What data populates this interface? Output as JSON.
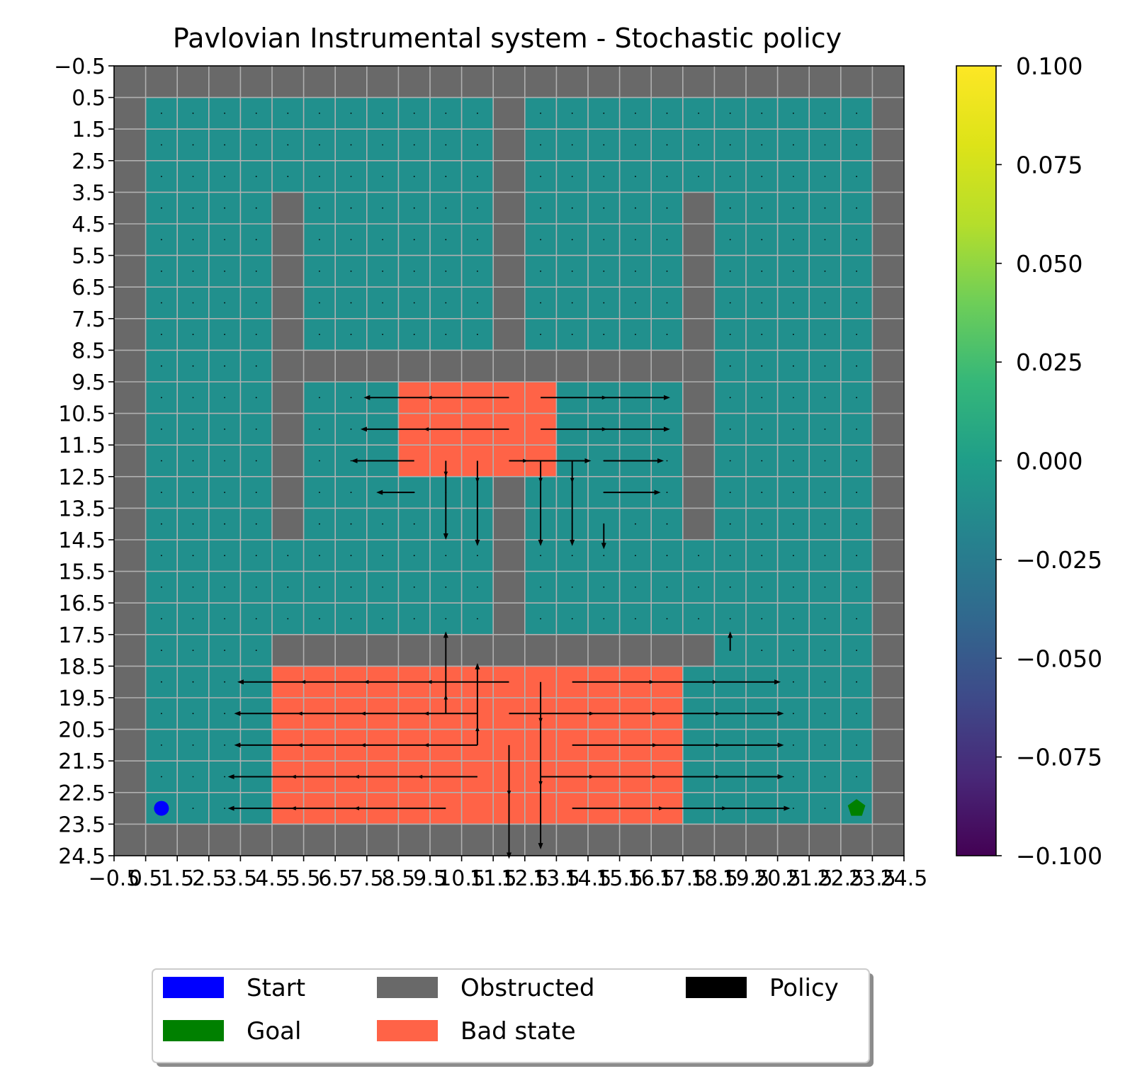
{
  "chart_data": {
    "type": "heatmap",
    "title": "Pavlovian Instrumental system - Stochastic policy",
    "xlabel": "",
    "ylabel": "",
    "xlim": [
      -0.5,
      24.5
    ],
    "ylim": [
      24.5,
      -0.5
    ],
    "grid": true,
    "xtick_labels": [
      "−0.5",
      "0.5",
      "1.5",
      "2.5",
      "3.5",
      "4.5",
      "5.5",
      "6.5",
      "7.5",
      "8.5",
      "9.5",
      "10.5",
      "11.5",
      "12.5",
      "13.5",
      "14.5",
      "15.5",
      "16.5",
      "17.5",
      "18.5",
      "19.5",
      "20.5",
      "21.5",
      "22.5",
      "23.5",
      "24.5"
    ],
    "ytick_labels": [
      "−0.5",
      "0.5",
      "1.5",
      "2.5",
      "3.5",
      "4.5",
      "5.5",
      "6.5",
      "7.5",
      "8.5",
      "9.5",
      "10.5",
      "11.5",
      "12.5",
      "13.5",
      "14.5",
      "15.5",
      "16.5",
      "17.5",
      "18.5",
      "19.5",
      "20.5",
      "21.5",
      "22.5",
      "23.5",
      "24.5"
    ],
    "grid_map": [
      "#########################",
      "#...........#...........#",
      "#...........#...........#",
      "#...........#...........#",
      "#....#......#.....#.....#",
      "#....#......#.....#.....#",
      "#....#......#.....#.....#",
      "#....#......#.....#.....#",
      "#....#......#.....#.....#",
      "#....##############.....#",
      "#....#...BBBBB....#.....#",
      "#....#...BBBBB....#.....#",
      "#....#...BBBBB....#.....#",
      "#....#......#.....#.....#",
      "#....#......#.....#.....#",
      "#...........#...........#",
      "#...........#...........#",
      "#...........#...........#",
      "#....##############.....#",
      "#....BBBBBBBBBBBBB......#",
      "#....BBBBBBBBBBBBB......#",
      "#....BBBBBBBBBBBBB......#",
      "#....BBBBBBBBBBBBB......#",
      "#....BBBBBBBBBBBBB......#",
      "#########################"
    ],
    "cell_colors": {
      "free": "#21908d",
      "obstructed": "#696969",
      "bad_state": "#ff6347",
      "grid_line": "#b0b0b0"
    },
    "start": {
      "x": 1,
      "y": 23
    },
    "goal": {
      "x": 23,
      "y": 23
    },
    "policy_arrows": [
      {
        "x": 12,
        "y": 10,
        "dx": -4.6,
        "dy": 0
      },
      {
        "x": 13,
        "y": 10,
        "dx": 4.1,
        "dy": 0
      },
      {
        "x": 12,
        "y": 11,
        "dx": -4.7,
        "dy": 0
      },
      {
        "x": 13,
        "y": 11,
        "dx": 4.1,
        "dy": 0
      },
      {
        "x": 9,
        "y": 12,
        "dx": -2.0,
        "dy": 0
      },
      {
        "x": 12,
        "y": 12,
        "dx": 2.6,
        "dy": 0
      },
      {
        "x": 15,
        "y": 12,
        "dx": 1.9,
        "dy": 0
      },
      {
        "x": 9,
        "y": 13,
        "dx": -1.2,
        "dy": 0
      },
      {
        "x": 15,
        "y": 13,
        "dx": 1.8,
        "dy": 0
      },
      {
        "x": 10,
        "y": 12,
        "dx": 0,
        "dy": 2.5
      },
      {
        "x": 11,
        "y": 12,
        "dx": 0,
        "dy": 2.7
      },
      {
        "x": 13,
        "y": 12,
        "dx": 0,
        "dy": 2.7
      },
      {
        "x": 14,
        "y": 12,
        "dx": 0,
        "dy": 2.7
      },
      {
        "x": 15,
        "y": 14,
        "dx": 0,
        "dy": 0.8
      },
      {
        "x": 19,
        "y": 18,
        "dx": 0,
        "dy": -0.6
      },
      {
        "x": 12,
        "y": 19,
        "dx": -8.6,
        "dy": 0
      },
      {
        "x": 13,
        "y": 19,
        "dx": 0,
        "dy": 5.3
      },
      {
        "x": 14,
        "y": 19,
        "dx": 6.6,
        "dy": 0
      },
      {
        "x": 10,
        "y": 20,
        "dx": 0,
        "dy": -2.6
      },
      {
        "x": 11,
        "y": 20,
        "dx": -7.7,
        "dy": 0
      },
      {
        "x": 12,
        "y": 20,
        "dx": 8.7,
        "dy": 0
      },
      {
        "x": 11,
        "y": 21,
        "dx": 0,
        "dy": -2.6
      },
      {
        "x": 11,
        "y": 21,
        "dx": -7.7,
        "dy": 0
      },
      {
        "x": 14,
        "y": 21,
        "dx": 6.7,
        "dy": 0
      },
      {
        "x": 12,
        "y": 21,
        "dx": 0,
        "dy": 3.6
      },
      {
        "x": 11,
        "y": 22,
        "dx": -7.9,
        "dy": 0
      },
      {
        "x": 13,
        "y": 22,
        "dx": 7.7,
        "dy": 0
      },
      {
        "x": 10,
        "y": 23,
        "dx": -6.9,
        "dy": 0
      },
      {
        "x": 14,
        "y": 23,
        "dx": 6.9,
        "dy": 0
      }
    ],
    "colorbar": {
      "cmap": "viridis",
      "range": [
        -0.1,
        0.1
      ],
      "ticks": [
        0.1,
        0.075,
        0.05,
        0.025,
        0.0,
        -0.025,
        -0.05,
        -0.075,
        -0.1
      ],
      "tick_labels": [
        "0.100",
        "0.075",
        "0.050",
        "0.025",
        "0.000",
        "−0.025",
        "−0.050",
        "−0.075",
        "−0.100"
      ]
    },
    "legend": {
      "placement": "bottom-center",
      "entries": [
        {
          "label": "Start",
          "color": "#0000ff"
        },
        {
          "label": "Goal",
          "color": "#008000"
        },
        {
          "label": "Obstructed",
          "color": "#696969"
        },
        {
          "label": "Bad state",
          "color": "#ff6347"
        },
        {
          "label": "Policy",
          "color": "#000000"
        }
      ]
    }
  }
}
